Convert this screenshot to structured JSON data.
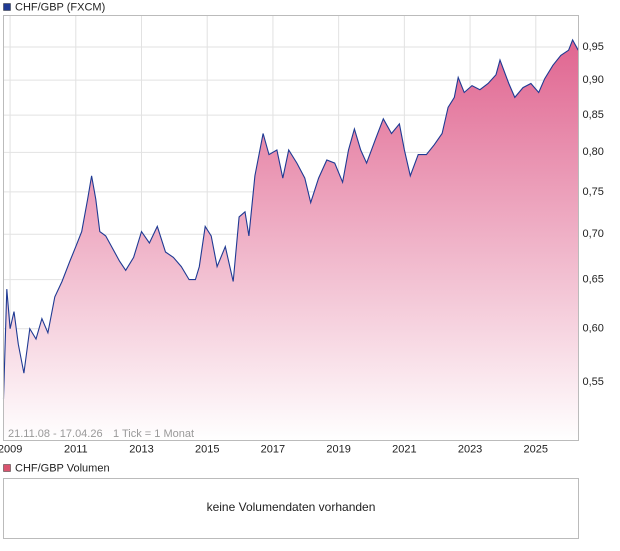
{
  "chart_data": {
    "type": "area",
    "title": "CHF/GBP (FXCM)",
    "date_range": "21.11.08 - 17.04.26",
    "tick_info": "1 Tick = 1 Monat",
    "log_scale": true,
    "grid": true,
    "xlim": [
      2008.8,
      2026.3
    ],
    "xticks": [
      2009,
      2011,
      2013,
      2015,
      2017,
      2019,
      2021,
      2023,
      2025
    ],
    "ylim": [
      0.5,
      1.0
    ],
    "yticks": [
      {
        "value": 0.55,
        "label": "0,55"
      },
      {
        "value": 0.6,
        "label": "0,60"
      },
      {
        "value": 0.65,
        "label": "0,65"
      },
      {
        "value": 0.7,
        "label": "0,70"
      },
      {
        "value": 0.75,
        "label": "0,75"
      },
      {
        "value": 0.8,
        "label": "0,80"
      },
      {
        "value": 0.85,
        "label": "0,85"
      },
      {
        "value": 0.9,
        "label": "0,90"
      },
      {
        "value": 0.95,
        "label": "0,95"
      }
    ],
    "series": [
      {
        "name": "CHF/GBP (FXCM)",
        "color": "#1f3a93",
        "fill_top": "#e06590",
        "fill_bottom": "#ffffff",
        "x": [
          2008.8,
          2008.9,
          2009.0,
          2009.12,
          2009.25,
          2009.42,
          2009.6,
          2009.79,
          2009.97,
          2010.15,
          2010.36,
          2010.58,
          2010.82,
          2011.0,
          2011.18,
          2011.36,
          2011.48,
          2011.61,
          2011.73,
          2011.91,
          2012.09,
          2012.33,
          2012.52,
          2012.76,
          2013.0,
          2013.24,
          2013.48,
          2013.73,
          2013.97,
          2014.21,
          2014.45,
          2014.64,
          2014.76,
          2014.94,
          2015.12,
          2015.3,
          2015.55,
          2015.79,
          2015.97,
          2016.15,
          2016.27,
          2016.45,
          2016.7,
          2016.88,
          2017.12,
          2017.3,
          2017.48,
          2017.73,
          2017.97,
          2018.15,
          2018.39,
          2018.64,
          2018.88,
          2019.12,
          2019.3,
          2019.48,
          2019.67,
          2019.85,
          2020.12,
          2020.36,
          2020.61,
          2020.85,
          2021.0,
          2021.18,
          2021.42,
          2021.67,
          2021.91,
          2022.15,
          2022.33,
          2022.52,
          2022.64,
          2022.82,
          2023.06,
          2023.3,
          2023.55,
          2023.79,
          2023.91,
          2024.18,
          2024.36,
          2024.61,
          2024.85,
          2025.09,
          2025.27,
          2025.52,
          2025.76,
          2026.0,
          2026.12,
          2026.29
        ],
        "values": [
          0.535,
          0.64,
          0.6,
          0.617,
          0.585,
          0.558,
          0.6,
          0.59,
          0.61,
          0.596,
          0.632,
          0.648,
          0.67,
          0.686,
          0.703,
          0.741,
          0.77,
          0.741,
          0.703,
          0.698,
          0.686,
          0.67,
          0.66,
          0.674,
          0.703,
          0.69,
          0.709,
          0.68,
          0.674,
          0.664,
          0.65,
          0.65,
          0.664,
          0.709,
          0.698,
          0.664,
          0.686,
          0.648,
          0.72,
          0.726,
          0.698,
          0.77,
          0.825,
          0.797,
          0.803,
          0.767,
          0.803,
          0.786,
          0.767,
          0.737,
          0.767,
          0.79,
          0.786,
          0.762,
          0.803,
          0.831,
          0.803,
          0.786,
          0.817,
          0.845,
          0.825,
          0.838,
          0.803,
          0.77,
          0.797,
          0.797,
          0.81,
          0.825,
          0.861,
          0.875,
          0.904,
          0.882,
          0.892,
          0.886,
          0.895,
          0.908,
          0.93,
          0.895,
          0.875,
          0.889,
          0.895,
          0.882,
          0.902,
          0.922,
          0.937,
          0.945,
          0.961,
          0.945
        ]
      }
    ],
    "volume_panel": {
      "title": "CHF/GBP Volumen",
      "color": "#d9546f",
      "message": "keine Volumendaten vorhanden"
    }
  }
}
